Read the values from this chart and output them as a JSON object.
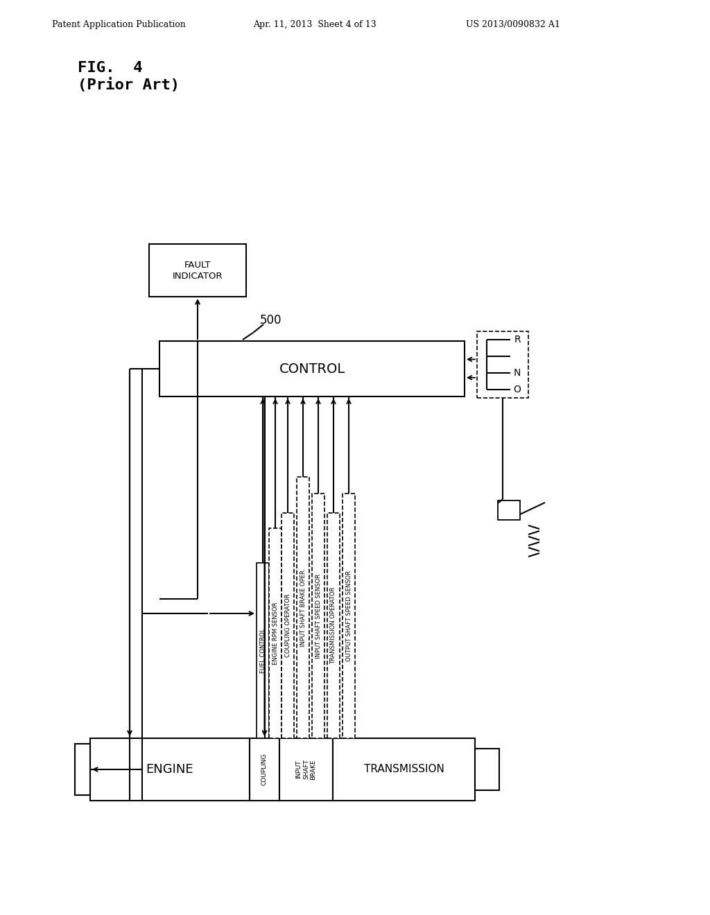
{
  "header_left": "Patent Application Publication",
  "header_mid": "Apr. 11, 2013  Sheet 4 of 13",
  "header_right": "US 2013/0090832 A1",
  "fig_label": "FIG.  4",
  "fig_sublabel": "(Prior Art)",
  "label_500": "500",
  "label_control": "CONTROL",
  "label_fault1": "FAULT",
  "label_fault2": "INDICATOR",
  "label_engine": "ENGINE",
  "label_transmission": "TRANSMISSION",
  "label_coupling": "COUPLING",
  "label_isb": "INPUT\nSHAFT\nBRAKE",
  "rno": [
    "R",
    "N",
    "O"
  ],
  "vertical_labels": [
    "FUEL CONTROL",
    "ENGINE RPM SENSOR",
    "COUPLING OPERATOR",
    "INPUT SHAFT BRAKE OPER.",
    "INPUT SHAFT SPEED SENSOR",
    "TRANSMISSION OPERATOR",
    "OUTPUT SHAFT SPEED SENSOR"
  ]
}
